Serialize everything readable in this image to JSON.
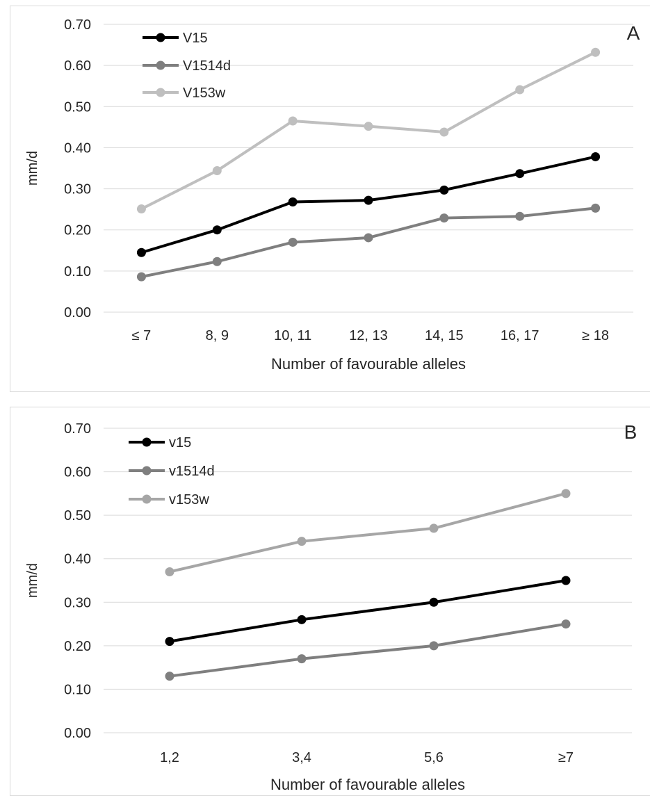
{
  "chart_data": [
    {
      "type": "line",
      "panel_label": "A",
      "xlabel": "Number of favourable alleles",
      "ylabel": "mm/d",
      "ylim": [
        0,
        0.7
      ],
      "yticks": [
        "0.00",
        "0.10",
        "0.20",
        "0.30",
        "0.40",
        "0.50",
        "0.60",
        "0.70"
      ],
      "categories": [
        "≤ 7",
        "8, 9",
        "10, 11",
        "12, 13",
        "14, 15",
        "16, 17",
        "≥ 18"
      ],
      "grid": true,
      "legend_position": "top-left",
      "series": [
        {
          "name": "V15",
          "color": "#000000",
          "values": [
            0.145,
            0.2,
            0.268,
            0.272,
            0.297,
            0.337,
            0.378
          ]
        },
        {
          "name": "V1514d",
          "color": "#7f7f7f",
          "values": [
            0.086,
            0.123,
            0.17,
            0.181,
            0.229,
            0.233,
            0.253
          ]
        },
        {
          "name": "V153w",
          "color": "#bfbfbf",
          "values": [
            0.251,
            0.344,
            0.465,
            0.452,
            0.438,
            0.541,
            0.632
          ]
        }
      ]
    },
    {
      "type": "line",
      "panel_label": "B",
      "xlabel": "Number of favourable alleles",
      "ylabel": "mm/d",
      "ylim": [
        0,
        0.7
      ],
      "yticks": [
        "0.00",
        "0.10",
        "0.20",
        "0.30",
        "0.40",
        "0.50",
        "0.60",
        "0.70"
      ],
      "categories": [
        "1,2",
        "3,4",
        "5,6",
        "≥7"
      ],
      "grid": true,
      "legend_position": "top-left",
      "series": [
        {
          "name": "v15",
          "color": "#000000",
          "values": [
            0.21,
            0.26,
            0.3,
            0.35
          ]
        },
        {
          "name": "v1514d",
          "color": "#7f7f7f",
          "values": [
            0.13,
            0.17,
            0.2,
            0.25
          ]
        },
        {
          "name": "v153w",
          "color": "#a6a6a6",
          "values": [
            0.37,
            0.44,
            0.47,
            0.55
          ]
        }
      ]
    }
  ]
}
